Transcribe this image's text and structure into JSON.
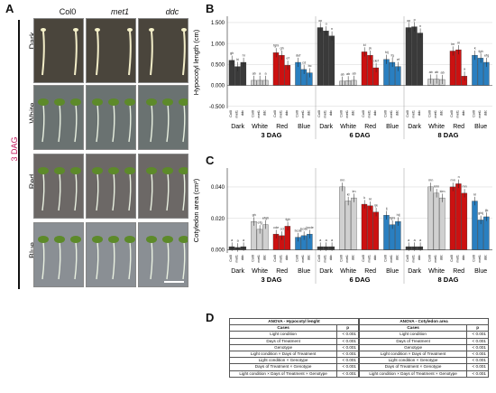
{
  "panel_labels": {
    "a": "A",
    "b": "B",
    "c": "C",
    "d": "D"
  },
  "panel_a": {
    "side_label": "3 DAG",
    "columns": [
      "Col0",
      "met1",
      "ddc"
    ],
    "rows": [
      "Dark",
      "White",
      "Red",
      "Blue"
    ],
    "row_colors": {
      "Dark": "#4a453c",
      "White": "#6a7271",
      "Red": "#6c6866",
      "Blue": "#8a8f94"
    }
  },
  "colors": {
    "Dark": "#3a3a3a",
    "White": "#d0d0d0",
    "Red": "#cc1111",
    "Blue": "#2a7fc0"
  },
  "chart_data": [
    {
      "type": "bar",
      "ylabel": "Hypocotyl length (cm)",
      "yticks": [
        "-0.500",
        "0.000",
        "0.500",
        "1.000",
        "1.500"
      ],
      "ylim": [
        -0.55,
        1.65
      ],
      "groups": [
        "3 DAG",
        "6 DAG",
        "8 DAG"
      ],
      "conditions": [
        "Dark",
        "White",
        "Red",
        "Blue"
      ],
      "genotypes": [
        "Col0",
        "met1",
        "ddc"
      ],
      "values": {
        "3 DAG": {
          "Dark": [
            0.6,
            0.45,
            0.55
          ],
          "White": [
            0.12,
            0.12,
            0.12
          ],
          "Red": [
            0.78,
            0.72,
            0.48
          ],
          "Blue": [
            0.55,
            0.38,
            0.3
          ]
        },
        "6 DAG": {
          "Dark": [
            1.38,
            1.3,
            1.18
          ],
          "White": [
            0.1,
            0.11,
            0.12
          ],
          "Red": [
            0.8,
            0.72,
            0.42
          ],
          "Blue": [
            0.62,
            0.55,
            0.45
          ]
        },
        "8 DAG": {
          "Dark": [
            1.38,
            1.4,
            1.25
          ],
          "White": [
            0.15,
            0.15,
            0.14
          ],
          "Red": [
            0.82,
            0.85,
            0.22
          ],
          "Blue": [
            0.72,
            0.65,
            0.55
          ]
        }
      },
      "sig_letters": {
        "3 DAG": {
          "Dark": [
            "gh",
            "hi",
            "hi"
          ],
          "White": [
            "ab",
            "a",
            "a"
          ],
          "Red": [
            "fghi",
            "gh",
            "ef"
          ],
          "Blue": [
            "def",
            "cd",
            "bc"
          ]
        },
        "6 DAG": {
          "Dark": [
            "op",
            "o",
            "n"
          ],
          "White": [
            "ab",
            "ab",
            "ab"
          ],
          "Red": [
            "kl",
            "jk",
            "def"
          ],
          "Blue": [
            "hij",
            "fg",
            "ef"
          ]
        },
        "8 DAG": {
          "Dark": [
            "op",
            "p",
            "n"
          ],
          "White": [
            "ab",
            "ab",
            "ab"
          ],
          "Red": [
            "lm",
            "m",
            "a"
          ],
          "Blue": [
            "k",
            "fgh",
            "efg"
          ]
        }
      }
    },
    {
      "type": "bar",
      "ylabel": "Cotyledon area (cm²)",
      "yticks": [
        "0.000",
        "0.020",
        "0.040"
      ],
      "ylim": [
        -0.002,
        0.052
      ],
      "groups": [
        "3 DAG",
        "6 DAG",
        "8 DAG"
      ],
      "conditions": [
        "Dark",
        "White",
        "Red",
        "Blue"
      ],
      "genotypes": [
        "Col0",
        "met1",
        "ddc"
      ],
      "values": {
        "3 DAG": {
          "Dark": [
            0.002,
            0.0015,
            0.002
          ],
          "White": [
            0.018,
            0.013,
            0.016
          ],
          "Red": [
            0.01,
            0.009,
            0.015
          ],
          "Blue": [
            0.008,
            0.009,
            0.01
          ]
        },
        "6 DAG": {
          "Dark": [
            0.002,
            0.002,
            0.002
          ],
          "White": [
            0.04,
            0.031,
            0.033
          ],
          "Red": [
            0.029,
            0.028,
            0.024
          ],
          "Blue": [
            0.022,
            0.016,
            0.018
          ]
        },
        "8 DAG": {
          "Dark": [
            0.002,
            0.002,
            0.002
          ],
          "White": [
            0.04,
            0.036,
            0.033
          ],
          "Red": [
            0.04,
            0.042,
            0.036
          ],
          "Blue": [
            0.031,
            0.019,
            0.021
          ]
        }
      },
      "sig_letters": {
        "3 DAG": {
          "Dark": [
            "a",
            "a",
            "a"
          ],
          "White": [
            "gh",
            "efg",
            "efgh"
          ],
          "Red": [
            "cde",
            "cd",
            "fgh"
          ],
          "Blue": [
            "bcde",
            "bcde",
            "bcde"
          ]
        },
        "6 DAG": {
          "Dark": [
            "a",
            "a",
            "a"
          ],
          "White": [
            "mn",
            "kl",
            "lm"
          ],
          "Red": [
            "k",
            "kl",
            "ijk"
          ],
          "Blue": [
            "ij",
            "fghi",
            "hij"
          ]
        },
        "8 DAG": {
          "Dark": [
            "a",
            "a",
            "a"
          ],
          "White": [
            "mn",
            "klm",
            "klm"
          ],
          "Red": [
            "mn",
            "n",
            "mn"
          ],
          "Blue": [
            "kl",
            "ghij",
            "ijk"
          ]
        }
      }
    }
  ],
  "anova": {
    "left": {
      "title": "ANOVA - Hypocotyl lenght",
      "col_cases": "Cases",
      "col_p": "p",
      "rows": [
        [
          "Light condition",
          "< 0.001"
        ],
        [
          "Days of Treatment",
          "< 0.001"
        ],
        [
          "Genotype",
          "< 0.001"
        ],
        [
          "Light condition × Days of Treatment",
          "< 0.001"
        ],
        [
          "Light condition × Genotype",
          "< 0.001"
        ],
        [
          "Days of Treatment × Genotype",
          "< 0.001"
        ],
        [
          "Light condition × Days of Treatment × Genotype",
          "< 0.001"
        ]
      ]
    },
    "right": {
      "title": "ANOVA - Cotyledon area",
      "col_cases": "Cases",
      "col_p": "p",
      "rows": [
        [
          "Light condition",
          "< 0.001"
        ],
        [
          "Days of Treatment",
          "< 0.001"
        ],
        [
          "Genotype",
          "< 0.001"
        ],
        [
          "Light condition × Days of Treatment",
          "< 0.001"
        ],
        [
          "Light condition × Genotype",
          "< 0.001"
        ],
        [
          "Days of Treatment × Genotype",
          "< 0.001"
        ],
        [
          "Light condition × Days of Treatment × Genotype",
          "< 0.001"
        ]
      ]
    }
  }
}
